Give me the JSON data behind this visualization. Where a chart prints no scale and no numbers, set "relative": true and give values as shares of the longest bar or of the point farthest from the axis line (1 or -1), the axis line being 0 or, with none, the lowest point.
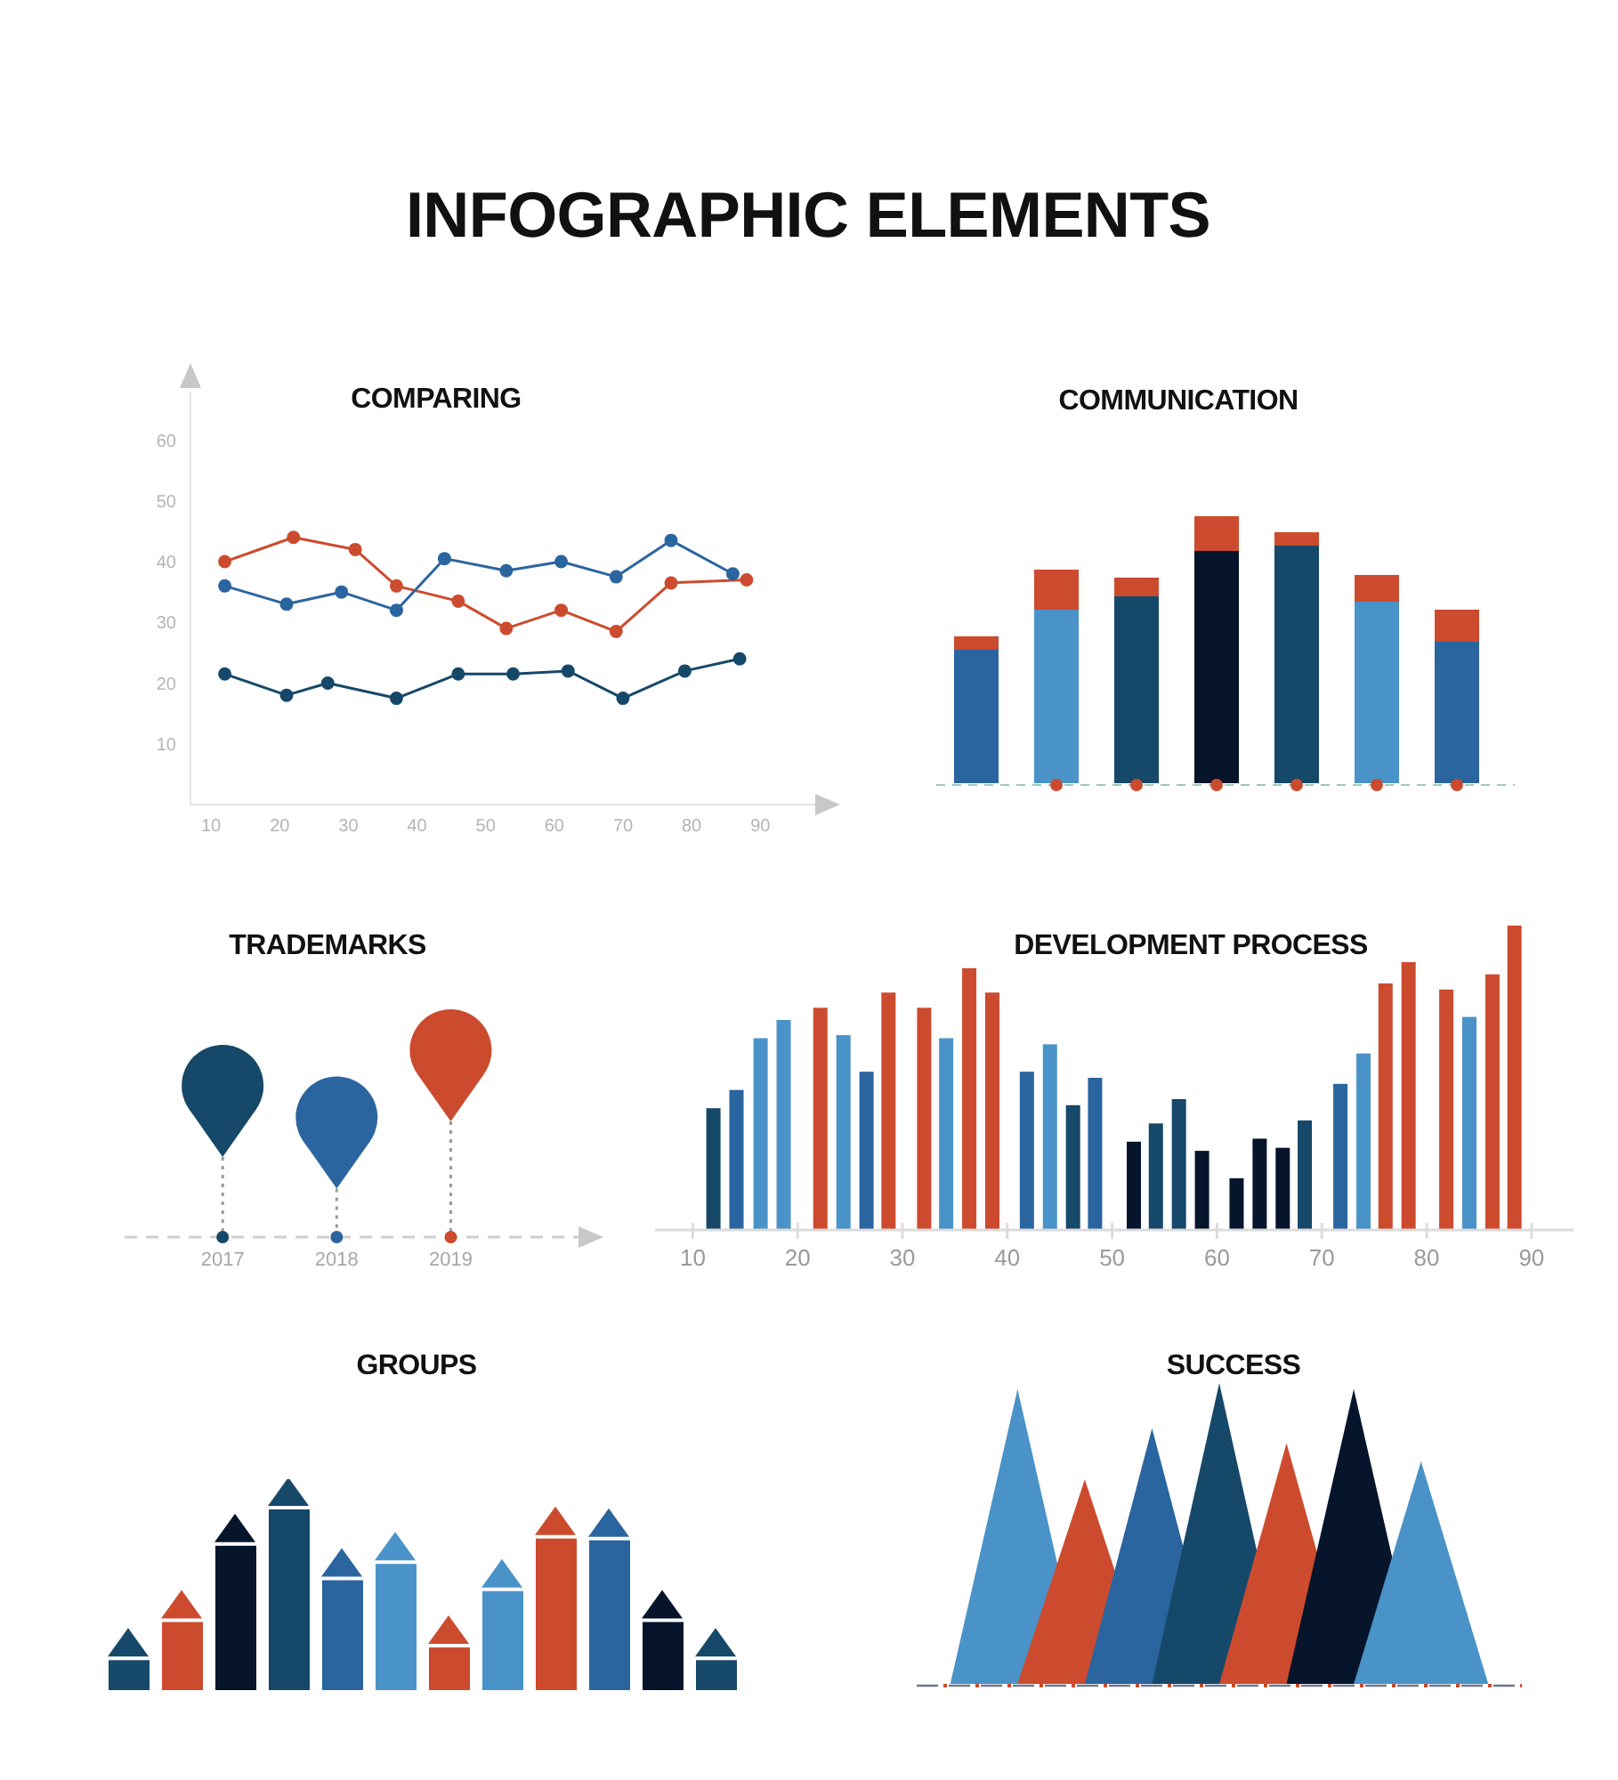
{
  "chart_data": [
    {
      "type": "other",
      "title": "INFOGRAPHIC ELEMENTS"
    },
    {
      "type": "line",
      "title": "COMPARING",
      "xlim": [
        7,
        98
      ],
      "xticks": [
        10,
        20,
        30,
        40,
        50,
        60,
        70,
        80,
        90
      ],
      "ylim": [
        0,
        68
      ],
      "yticks": [
        10,
        20,
        30,
        40,
        50,
        60
      ],
      "marker": "circle",
      "line_style": "solid",
      "series": [
        {
          "color": "#cc4b2e",
          "x": [
            12,
            22,
            31,
            37,
            46,
            53,
            61,
            69,
            77,
            88
          ],
          "values": [
            40,
            44,
            42,
            36,
            33.5,
            29,
            32,
            28.5,
            36.5,
            37
          ]
        },
        {
          "color": "#2a65a0",
          "x": [
            12,
            21,
            29,
            37,
            44,
            53,
            61,
            69,
            77,
            86
          ],
          "values": [
            36,
            33,
            35,
            32,
            40.5,
            38.5,
            40,
            37.5,
            43.5,
            38
          ]
        },
        {
          "color": "#16486a",
          "x": [
            12,
            21,
            27,
            37,
            46,
            54,
            62,
            70,
            79,
            87
          ],
          "values": [
            21.5,
            18,
            20,
            17.5,
            21.5,
            21.5,
            22,
            17.5,
            22,
            24
          ]
        }
      ]
    },
    {
      "type": "bar",
      "title": "COMMUNICATION",
      "relative": true,
      "stacked": true,
      "categories": [
        null,
        null,
        null,
        null,
        null,
        null,
        null
      ],
      "series": [
        {
          "colors": [
            "#2a65a0",
            "#4a93c8",
            "#16486a",
            "#06152c",
            "#16486a",
            "#4a93c8",
            "#2a65a0"
          ],
          "values": [
            0.5,
            0.65,
            0.7,
            0.87,
            0.89,
            0.68,
            0.53
          ]
        },
        {
          "color": "#cc4b2e",
          "values": [
            0.05,
            0.15,
            0.07,
            0.13,
            0.05,
            0.1,
            0.12
          ]
        }
      ]
    },
    {
      "type": "lollipop",
      "title": "TRADEMARKS",
      "relative": true,
      "categories": [
        "2017",
        "2018",
        "2019"
      ],
      "colors": [
        "#16486a",
        "#2a65a0",
        "#cc4b2e"
      ],
      "values": [
        0.81,
        0.64,
        1
      ]
    },
    {
      "type": "bar",
      "title": "DEVELOPMENT PROCESS",
      "relative": true,
      "xlim": [
        6.4,
        94
      ],
      "xticks": [
        10,
        20,
        30,
        40,
        50,
        60,
        70,
        80,
        90
      ],
      "x": [
        12,
        14.2,
        16.5,
        18.7,
        22.2,
        24.4,
        26.6,
        28.7,
        32.1,
        34.2,
        36.4,
        38.6,
        41.9,
        44.1,
        46.3,
        48.4,
        52.1,
        54.2,
        56.4,
        58.6,
        61.9,
        64.1,
        66.3,
        68.4,
        71.8,
        74,
        76.1,
        78.3,
        81.9,
        84.1,
        86.3,
        88.4
      ],
      "values": [
        0.4,
        0.46,
        0.63,
        0.69,
        0.73,
        0.64,
        0.52,
        0.78,
        0.73,
        0.63,
        0.86,
        0.78,
        0.52,
        0.61,
        0.41,
        0.5,
        0.29,
        0.35,
        0.43,
        0.26,
        0.17,
        0.3,
        0.27,
        0.36,
        0.48,
        0.58,
        0.81,
        0.88,
        0.79,
        0.7,
        0.84,
        1
      ],
      "colors": [
        "#16486a",
        "#2a65a0",
        "#4a93c8",
        "#4a93c8",
        "#cc4b2e",
        "#4a93c8",
        "#2a65a0",
        "#cc4b2e",
        "#cc4b2e",
        "#4a93c8",
        "#cc4b2e",
        "#cc4b2e",
        "#2a65a0",
        "#4a93c8",
        "#16486a",
        "#2a65a0",
        "#06152c",
        "#16486a",
        "#16486a",
        "#06152c",
        "#06152c",
        "#06152c",
        "#06152c",
        "#16486a",
        "#2a65a0",
        "#4a93c8",
        "#cc4b2e",
        "#cc4b2e",
        "#cc4b2e",
        "#4a93c8",
        "#cc4b2e",
        "#cc4b2e"
      ]
    },
    {
      "type": "bar",
      "title": "GROUPS",
      "relative": true,
      "categories": [
        null,
        null,
        null,
        null,
        null,
        null,
        null,
        null,
        null,
        null,
        null,
        null
      ],
      "values": [
        0.17,
        0.38,
        0.8,
        1,
        0.61,
        0.7,
        0.24,
        0.55,
        0.84,
        0.83,
        0.38,
        0.17
      ],
      "colors": [
        "#16486a",
        "#cc4b2e",
        "#06152c",
        "#16486a",
        "#2a65a0",
        "#4a93c8",
        "#cc4b2e",
        "#4a93c8",
        "#cc4b2e",
        "#2a65a0",
        "#06152c",
        "#16486a"
      ]
    },
    {
      "type": "area",
      "title": "SUCCESS",
      "relative": true,
      "categories": [
        null,
        null,
        null,
        null,
        null,
        null,
        null,
        null,
        null
      ],
      "series": [
        {
          "color": "#4a93c8",
          "values": [
            0,
            0.98,
            0,
            null,
            null,
            null,
            null,
            null,
            null
          ]
        },
        {
          "color": "#cc4b2e",
          "values": [
            null,
            0,
            0.68,
            0,
            null,
            null,
            null,
            null,
            null
          ]
        },
        {
          "color": "#2a65a0",
          "values": [
            null,
            null,
            0,
            0.85,
            0,
            null,
            null,
            null,
            null
          ]
        },
        {
          "color": "#16486a",
          "values": [
            null,
            null,
            null,
            0,
            1,
            0,
            null,
            null,
            null
          ]
        },
        {
          "color": "#cc4b2e",
          "values": [
            null,
            null,
            null,
            null,
            0,
            0.8,
            0,
            null,
            null
          ]
        },
        {
          "color": "#06152c",
          "values": [
            null,
            null,
            null,
            null,
            null,
            0,
            0.98,
            0,
            null
          ]
        },
        {
          "color": "#4a93c8",
          "values": [
            null,
            null,
            null,
            null,
            null,
            null,
            0,
            0.74,
            0
          ]
        }
      ]
    }
  ]
}
